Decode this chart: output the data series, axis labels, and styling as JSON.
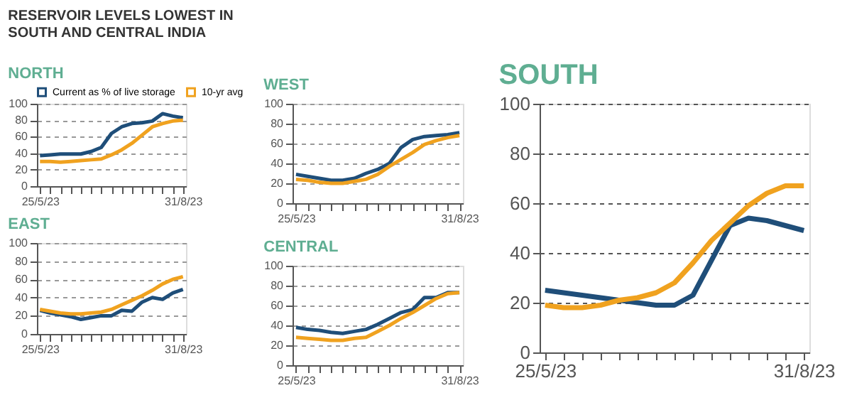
{
  "chart_data": [
    {
      "type": "line",
      "title": "RESERVOIR LEVELS LOWEST IN SOUTH AND CENTRAL INDIA",
      "subtitle": "NORTH",
      "categories": [
        "25/5/23",
        null,
        null,
        null,
        null,
        null,
        null,
        null,
        null,
        null,
        null,
        null,
        null,
        null,
        "31/8/23"
      ],
      "ylim": [
        0,
        100
      ],
      "yticks": [
        0,
        20,
        40,
        60,
        80,
        100
      ],
      "grid": "y",
      "legend": "top",
      "series": [
        {
          "name": "Current as % of live storage",
          "color": "#1f4e79",
          "values": [
            37,
            38,
            39,
            39,
            39,
            42,
            47,
            64,
            72,
            76,
            77,
            79,
            88,
            85,
            83
          ]
        },
        {
          "name": "10-yr avg",
          "color": "#f0a21f",
          "values": [
            30,
            30,
            29,
            30,
            31,
            32,
            33,
            38,
            44,
            52,
            62,
            72,
            76,
            79,
            80
          ]
        }
      ]
    },
    {
      "type": "line",
      "title": "EAST",
      "categories": [
        "25/5/23",
        null,
        null,
        null,
        null,
        null,
        null,
        null,
        null,
        null,
        null,
        null,
        null,
        null,
        "31/8/23"
      ],
      "ylim": [
        0,
        100
      ],
      "yticks": [
        0,
        20,
        40,
        60,
        80,
        100
      ],
      "grid": "y",
      "series": [
        {
          "color": "#1f4e79",
          "values": [
            26,
            23,
            21,
            19,
            16,
            18,
            20,
            20,
            26,
            25,
            35,
            40,
            38,
            45,
            49
          ]
        },
        {
          "color": "#f0a21f",
          "values": [
            27,
            25,
            23,
            22,
            22,
            23,
            24,
            27,
            32,
            37,
            42,
            48,
            55,
            60,
            63
          ]
        }
      ]
    },
    {
      "type": "line",
      "title": "WEST",
      "categories": [
        "25/5/23",
        null,
        null,
        null,
        null,
        null,
        null,
        null,
        null,
        null,
        null,
        null,
        null,
        null,
        "31/8/23"
      ],
      "ylim": [
        0,
        100
      ],
      "yticks": [
        0,
        20,
        40,
        60,
        80,
        100
      ],
      "grid": "y",
      "series": [
        {
          "color": "#1f4e79",
          "values": [
            29,
            27,
            25,
            23,
            23,
            25,
            30,
            34,
            40,
            56,
            64,
            67,
            68,
            69,
            71
          ]
        },
        {
          "color": "#f0a21f",
          "values": [
            24,
            23,
            21,
            20,
            20,
            22,
            24,
            29,
            37,
            44,
            51,
            59,
            63,
            66,
            68
          ]
        }
      ]
    },
    {
      "type": "line",
      "title": "CENTRAL",
      "categories": [
        "25/5/23",
        null,
        null,
        null,
        null,
        null,
        null,
        null,
        null,
        null,
        null,
        null,
        null,
        null,
        "31/8/23"
      ],
      "ylim": [
        0,
        100
      ],
      "yticks": [
        0,
        20,
        40,
        60,
        80,
        100
      ],
      "grid": "y",
      "series": [
        {
          "color": "#1f4e79",
          "values": [
            38,
            36,
            35,
            33,
            32,
            34,
            36,
            41,
            47,
            53,
            56,
            68,
            68,
            73,
            73
          ]
        },
        {
          "color": "#f0a21f",
          "values": [
            28,
            27,
            26,
            25,
            25,
            27,
            28,
            34,
            40,
            47,
            53,
            60,
            67,
            72,
            73
          ]
        }
      ]
    },
    {
      "type": "line",
      "title": "SOUTH",
      "categories": [
        "25/5/23",
        null,
        null,
        null,
        null,
        null,
        null,
        null,
        null,
        null,
        null,
        null,
        null,
        null,
        "31/8/23"
      ],
      "ylim": [
        0,
        100
      ],
      "yticks": [
        0,
        20,
        40,
        60,
        80,
        100
      ],
      "grid": "y",
      "series": [
        {
          "color": "#1f4e79",
          "values": [
            25,
            24,
            23,
            22,
            21,
            20,
            19,
            19,
            23,
            37,
            51,
            54,
            53,
            51,
            49
          ]
        },
        {
          "color": "#f0a21f",
          "values": [
            19,
            18,
            18,
            19,
            21,
            22,
            24,
            28,
            36,
            45,
            52,
            59,
            64,
            67,
            67
          ]
        }
      ]
    }
  ]
}
